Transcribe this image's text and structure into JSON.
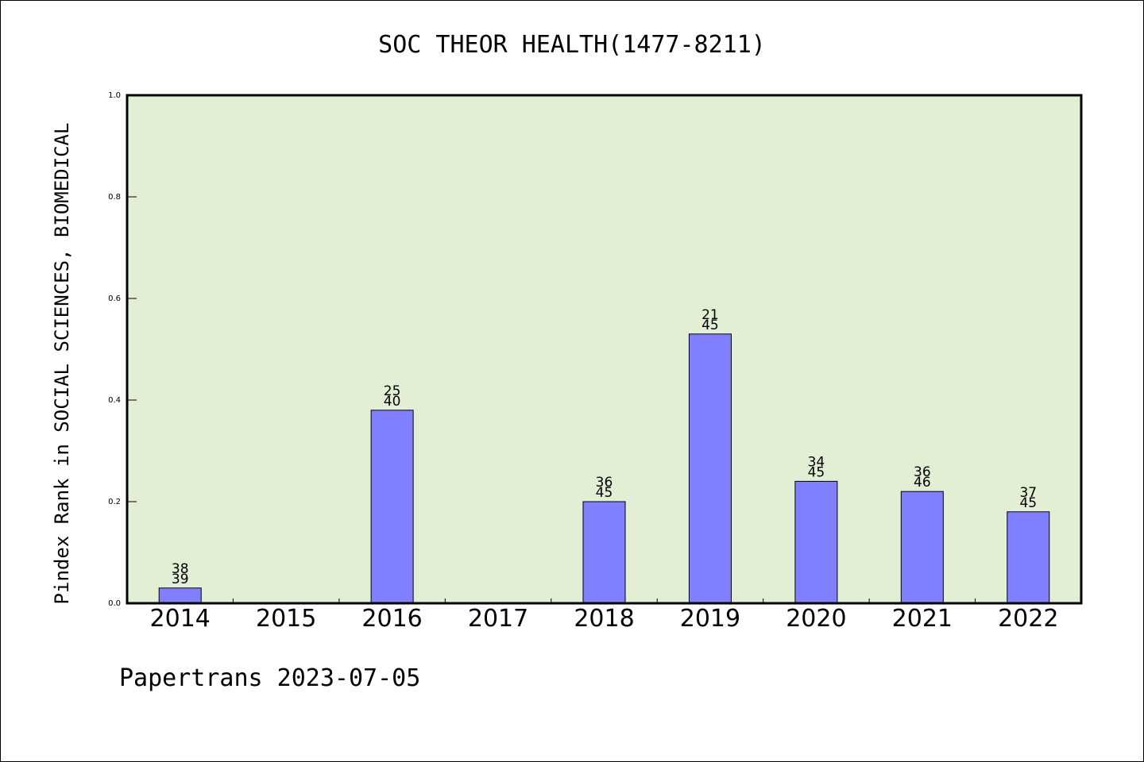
{
  "chart_data": {
    "type": "bar",
    "title": "SOC THEOR HEALTH(1477-8211)",
    "xlabel": "",
    "ylabel": "Pindex Rank in SOCIAL SCIENCES, BIOMEDICAL",
    "categories": [
      "2014",
      "2015",
      "2016",
      "2017",
      "2018",
      "2019",
      "2020",
      "2021",
      "2022"
    ],
    "values": [
      0.03,
      null,
      0.38,
      null,
      0.2,
      0.53,
      0.24,
      0.22,
      0.18
    ],
    "rank_labels": [
      [
        "38",
        "39"
      ],
      null,
      [
        "25",
        "40"
      ],
      null,
      [
        "36",
        "45"
      ],
      [
        "21",
        "45"
      ],
      [
        "34",
        "45"
      ],
      [
        "36",
        "46"
      ],
      [
        "37",
        "45"
      ]
    ],
    "ylim": [
      0,
      1.0
    ],
    "yticks": [
      "0.0",
      "0.2",
      "0.4",
      "0.6",
      "0.8",
      "1.0"
    ],
    "grid": false,
    "colors": {
      "plot_background": "#e2efd5",
      "bar_fill": "#8080ff",
      "bar_stroke": "#000000",
      "axis": "#000000"
    }
  },
  "footer": {
    "text": "Papertrans 2023-07-05"
  }
}
